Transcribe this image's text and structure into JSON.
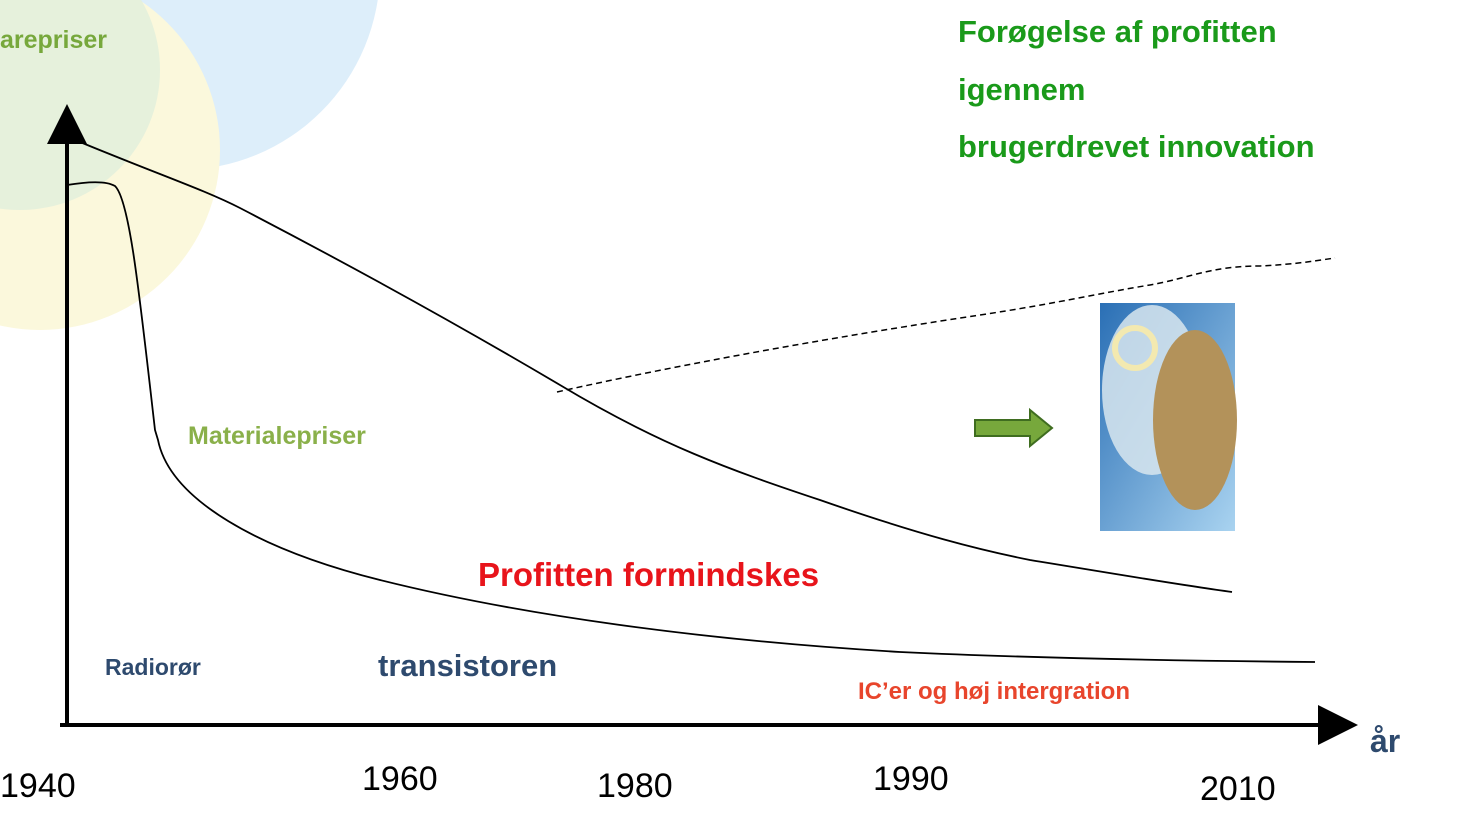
{
  "axis": {
    "y_label": "arepriser",
    "x_label": "år",
    "years": [
      "1940",
      "1960",
      "1980",
      "1990",
      "2010"
    ]
  },
  "title": [
    "Forøgelse af profitten",
    "igennem",
    "brugerdrevet innovation"
  ],
  "annotations": {
    "materials": "Materialepriser",
    "profit_down": "Profitten formindskes",
    "radio": "Radiorør",
    "transistor": "transistoren",
    "ic": "IC’er og høj intergration"
  }
}
